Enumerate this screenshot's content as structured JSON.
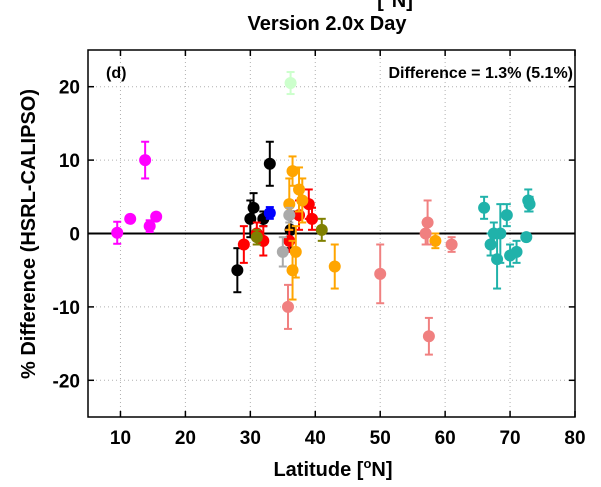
{
  "chart_data": {
    "type": "scatter",
    "title_top": "[°N]",
    "title": "Version 2.0x Day",
    "panel_label": "(d)",
    "annotation": "Difference = 1.3% (5.1%)",
    "xlabel_base": "Latitude [",
    "xlabel_sup": "o",
    "xlabel_tail": "N]",
    "ylabel": "% Difference (HSRL-CALIPSO)",
    "xlim": [
      5,
      80
    ],
    "ylim": [
      -25,
      25
    ],
    "xticks": [
      10,
      20,
      30,
      40,
      50,
      60,
      70,
      80
    ],
    "yticks": [
      -20,
      -10,
      0,
      10,
      20
    ],
    "grid": true,
    "zero_line": true,
    "series": [
      {
        "color": "#ff00ff",
        "points": [
          {
            "x": 9.5,
            "y": 0.1,
            "err": 1.5
          },
          {
            "x": 11.5,
            "y": 2.0,
            "err": 0
          },
          {
            "x": 13.8,
            "y": 10.0,
            "err": 2.5
          },
          {
            "x": 14.5,
            "y": 1.0,
            "err": 0.8
          },
          {
            "x": 15.5,
            "y": 2.3,
            "err": 0
          }
        ]
      },
      {
        "color": "#000000",
        "points": [
          {
            "x": 28.0,
            "y": -5.0,
            "err": 3.0
          },
          {
            "x": 30.0,
            "y": 2.0,
            "err": 2.5
          },
          {
            "x": 30.5,
            "y": 3.5,
            "err": 2.0
          },
          {
            "x": 32.0,
            "y": 2.0,
            "err": 1.0
          },
          {
            "x": 33.0,
            "y": 9.5,
            "err": 3.0
          },
          {
            "x": 36.2,
            "y": 0.5,
            "err": 2.5
          }
        ]
      },
      {
        "color": "#ff0000",
        "points": [
          {
            "x": 29.0,
            "y": -1.5,
            "err": 2.5
          },
          {
            "x": 31.0,
            "y": 0.0,
            "err": 1.5
          },
          {
            "x": 32.0,
            "y": -1.0,
            "err": 2.0
          },
          {
            "x": 36.0,
            "y": -1.0,
            "err": 1.5
          },
          {
            "x": 37.5,
            "y": 2.5,
            "err": 2.0
          },
          {
            "x": 39.0,
            "y": 4.0,
            "err": 2.0
          },
          {
            "x": 39.5,
            "y": 2.0,
            "err": 1.5
          }
        ]
      },
      {
        "color": "#0000ff",
        "points": [
          {
            "x": 33.0,
            "y": 2.8,
            "err": 0.8
          }
        ]
      },
      {
        "color": "#ffa500",
        "points": [
          {
            "x": 36.5,
            "y": 8.5,
            "err": 2.0
          },
          {
            "x": 36.0,
            "y": 4.0,
            "err": 3.5
          },
          {
            "x": 36.5,
            "y": -5.0,
            "err": 4.0
          },
          {
            "x": 37.5,
            "y": 6.0,
            "err": 3.0
          },
          {
            "x": 38.0,
            "y": 4.5,
            "err": 3.0
          },
          {
            "x": 37.0,
            "y": -2.5,
            "err": 3.5
          },
          {
            "x": 43.0,
            "y": -4.5,
            "err": 3.0
          },
          {
            "x": 58.5,
            "y": -1.0,
            "err": 1.0
          }
        ]
      },
      {
        "color": "#aaaaaa",
        "points": [
          {
            "x": 35.0,
            "y": -2.5,
            "err": 2.0
          },
          {
            "x": 36.0,
            "y": 2.5,
            "err": 1.0
          }
        ]
      },
      {
        "color": "#ccffcc",
        "points": [
          {
            "x": 36.2,
            "y": 20.5,
            "err": 1.5
          }
        ]
      },
      {
        "color": "#808000",
        "points": [
          {
            "x": 31.0,
            "y": -0.5,
            "err": 1.0
          },
          {
            "x": 41.0,
            "y": 0.5,
            "err": 1.5
          }
        ]
      },
      {
        "color": "#f08080",
        "points": [
          {
            "x": 35.8,
            "y": -10.0,
            "err": 3.0
          },
          {
            "x": 50.0,
            "y": -5.5,
            "err": 4.0
          },
          {
            "x": 57.3,
            "y": 1.5,
            "err": 3.0
          },
          {
            "x": 57.5,
            "y": -14.0,
            "err": 2.5
          },
          {
            "x": 57.0,
            "y": 0.0,
            "err": 1.5
          },
          {
            "x": 61.0,
            "y": -1.5,
            "err": 1.0
          }
        ]
      },
      {
        "color": "#20b2aa",
        "points": [
          {
            "x": 66.0,
            "y": 3.5,
            "err": 1.5
          },
          {
            "x": 67.0,
            "y": -1.5,
            "err": 1.5
          },
          {
            "x": 67.5,
            "y": 0.0,
            "err": 1.5
          },
          {
            "x": 68.0,
            "y": -3.5,
            "err": 4.0
          },
          {
            "x": 68.5,
            "y": 0.0,
            "err": 4.0
          },
          {
            "x": 69.5,
            "y": 2.5,
            "err": 1.5
          },
          {
            "x": 70.0,
            "y": -3.0,
            "err": 1.5
          },
          {
            "x": 71.0,
            "y": -2.5,
            "err": 1.5
          },
          {
            "x": 72.5,
            "y": -0.5,
            "err": 0.5
          },
          {
            "x": 72.8,
            "y": 4.5,
            "err": 1.5
          },
          {
            "x": 73.0,
            "y": 4.0,
            "err": 1.0
          }
        ]
      }
    ]
  }
}
